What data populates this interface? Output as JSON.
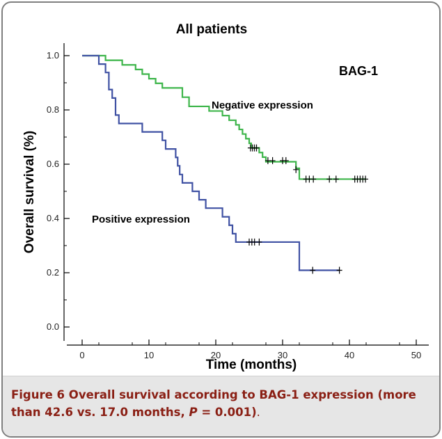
{
  "chart_data": {
    "type": "line",
    "subtype": "kaplan-meier survival curve",
    "title": "All patients",
    "xlabel": "Time (months)",
    "ylabel": "Overall survival (%)",
    "xlim": [
      0,
      50
    ],
    "ylim": [
      0,
      1.0
    ],
    "x_ticks": [
      0,
      10,
      20,
      30,
      40,
      50
    ],
    "y_ticks": [
      0.0,
      0.2,
      0.4,
      0.6,
      0.8,
      1.0
    ],
    "x_tick_labels": [
      "0",
      "10",
      "20",
      "30",
      "40",
      "50"
    ],
    "y_tick_labels": [
      "0.0",
      "0.2",
      "0.4",
      "0.6",
      "0.8",
      "1.0"
    ],
    "grid": false,
    "annotations": {
      "marker": "BAG-1",
      "negative_label": "Negative expression",
      "positive_label": "Positive expression"
    },
    "series": [
      {
        "name": "Negative expression",
        "color": "#3db54a",
        "steps": [
          [
            0,
            1.0
          ],
          [
            3.5,
            0.983
          ],
          [
            6,
            0.966
          ],
          [
            8,
            0.949
          ],
          [
            9,
            0.932
          ],
          [
            10,
            0.915
          ],
          [
            11,
            0.898
          ],
          [
            12,
            0.881
          ],
          [
            15,
            0.847
          ],
          [
            16,
            0.813
          ],
          [
            19,
            0.796
          ],
          [
            21,
            0.779
          ],
          [
            22,
            0.762
          ],
          [
            23,
            0.745
          ],
          [
            23.5,
            0.728
          ],
          [
            24,
            0.711
          ],
          [
            24.5,
            0.694
          ],
          [
            25,
            0.677
          ],
          [
            25.3,
            0.66
          ],
          [
            26.5,
            0.643
          ],
          [
            27,
            0.626
          ],
          [
            27.5,
            0.609
          ],
          [
            32,
            0.585
          ],
          [
            32.5,
            0.545
          ],
          [
            42.5,
            0.545
          ]
        ],
        "censored": [
          [
            25.2,
            0.66
          ],
          [
            25.5,
            0.66
          ],
          [
            25.8,
            0.66
          ],
          [
            26.1,
            0.66
          ],
          [
            27.8,
            0.613
          ],
          [
            28.5,
            0.613
          ],
          [
            30,
            0.613
          ],
          [
            30.5,
            0.613
          ],
          [
            32,
            0.58
          ],
          [
            33.5,
            0.545
          ],
          [
            34,
            0.545
          ],
          [
            34.6,
            0.545
          ],
          [
            37,
            0.545
          ],
          [
            38,
            0.545
          ],
          [
            40.8,
            0.545
          ],
          [
            41.2,
            0.545
          ],
          [
            41.6,
            0.545
          ],
          [
            42,
            0.545
          ],
          [
            42.4,
            0.545
          ]
        ]
      },
      {
        "name": "Positive expression",
        "color": "#3f51a3",
        "steps": [
          [
            0,
            1.0
          ],
          [
            2.5,
            0.969
          ],
          [
            3.5,
            0.938
          ],
          [
            4,
            0.875
          ],
          [
            4.5,
            0.844
          ],
          [
            5,
            0.781
          ],
          [
            5.5,
            0.75
          ],
          [
            6.5,
            0.75
          ],
          [
            9,
            0.719
          ],
          [
            12,
            0.688
          ],
          [
            12.5,
            0.656
          ],
          [
            14,
            0.625
          ],
          [
            14.3,
            0.594
          ],
          [
            14.6,
            0.562
          ],
          [
            15,
            0.531
          ],
          [
            16.5,
            0.5
          ],
          [
            17.5,
            0.469
          ],
          [
            18.5,
            0.438
          ],
          [
            21,
            0.406
          ],
          [
            22,
            0.375
          ],
          [
            22.5,
            0.344
          ],
          [
            23,
            0.313
          ],
          [
            32.5,
            0.209
          ],
          [
            38.5,
            0.209
          ]
        ],
        "censored": [
          [
            25,
            0.313
          ],
          [
            25.4,
            0.313
          ],
          [
            25.8,
            0.313
          ],
          [
            26.5,
            0.313
          ],
          [
            34.5,
            0.209
          ],
          [
            38.5,
            0.209
          ]
        ]
      }
    ]
  },
  "caption": {
    "label": "Figure 6",
    "text": " Overall survival according to BAG-1 expression (more than 42.6 vs. 17.0 months, ",
    "p_symbol": "P",
    "p_value": " = 0.001)",
    "end": "."
  }
}
